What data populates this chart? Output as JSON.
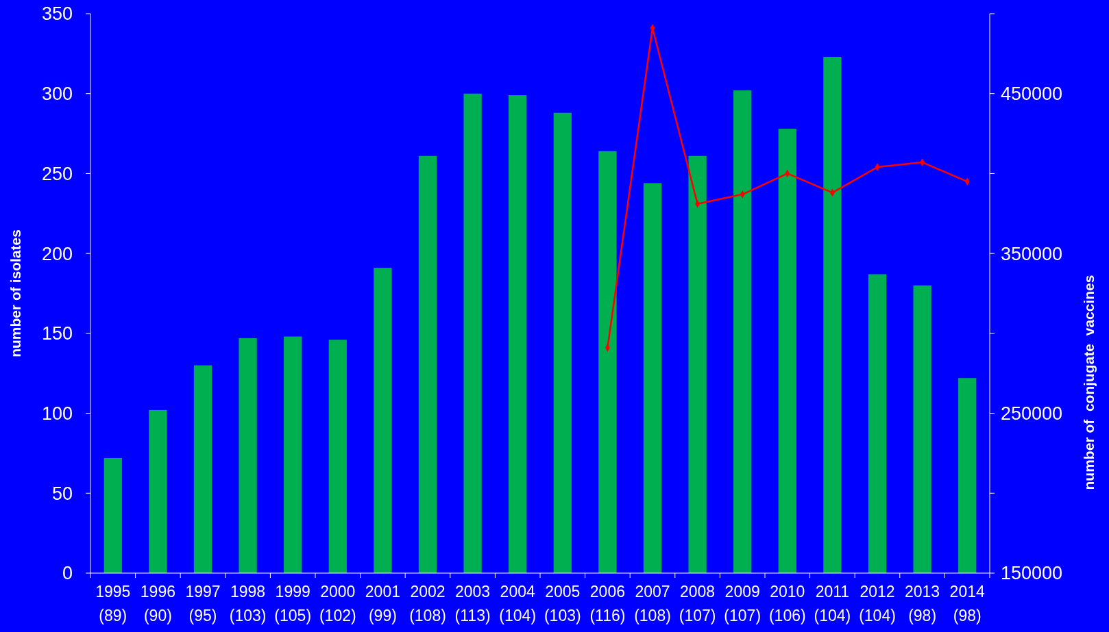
{
  "chart_data": {
    "type": "bar",
    "ylabel": "number of isolates",
    "y2label": "number of  conjugate  vaccines",
    "categories": [
      "1995\n(89)",
      "1996\n(90)",
      "1997\n(95)",
      "1998\n(103)",
      "1999\n(105)",
      "2000\n(102)",
      "2001\n(99)",
      "2002\n(108)",
      "2003\n(113)",
      "2004\n(104)",
      "2005\n(103)",
      "2006\n(116)",
      "2007\n(108)",
      "2008\n(107)",
      "2009\n(107)",
      "2010\n(106)",
      "2011\n(104)",
      "2012\n(104)",
      "2013\n(98)",
      "2014\n(98)"
    ],
    "series": [
      {
        "color": "#00b050",
        "values": [
          72,
          102,
          130,
          147,
          148,
          146,
          191,
          261,
          300,
          299,
          288,
          264,
          244,
          261,
          302,
          278,
          323,
          187,
          180,
          122
        ]
      },
      {
        "type": "line",
        "axis": "y2",
        "color": "#ff0000",
        "marker": "diamond",
        "values": [
          null,
          null,
          null,
          null,
          null,
          null,
          null,
          null,
          null,
          null,
          null,
          291000,
          491000,
          381000,
          387000,
          400000,
          388000,
          404000,
          407000,
          395000
        ]
      }
    ],
    "ylim": [
      0,
      350
    ],
    "yticks": [
      0,
      50,
      100,
      150,
      200,
      250,
      300,
      350
    ],
    "y2lim": [
      150000,
      500000
    ],
    "y2ticks": [
      150000,
      {
        "value": 200000,
        "label": null
      },
      250000,
      {
        "value": 300000,
        "label": null
      },
      350000,
      {
        "value": 400000,
        "label": null
      },
      450000,
      {
        "value": 500000,
        "label": null
      }
    ],
    "grid": false
  }
}
